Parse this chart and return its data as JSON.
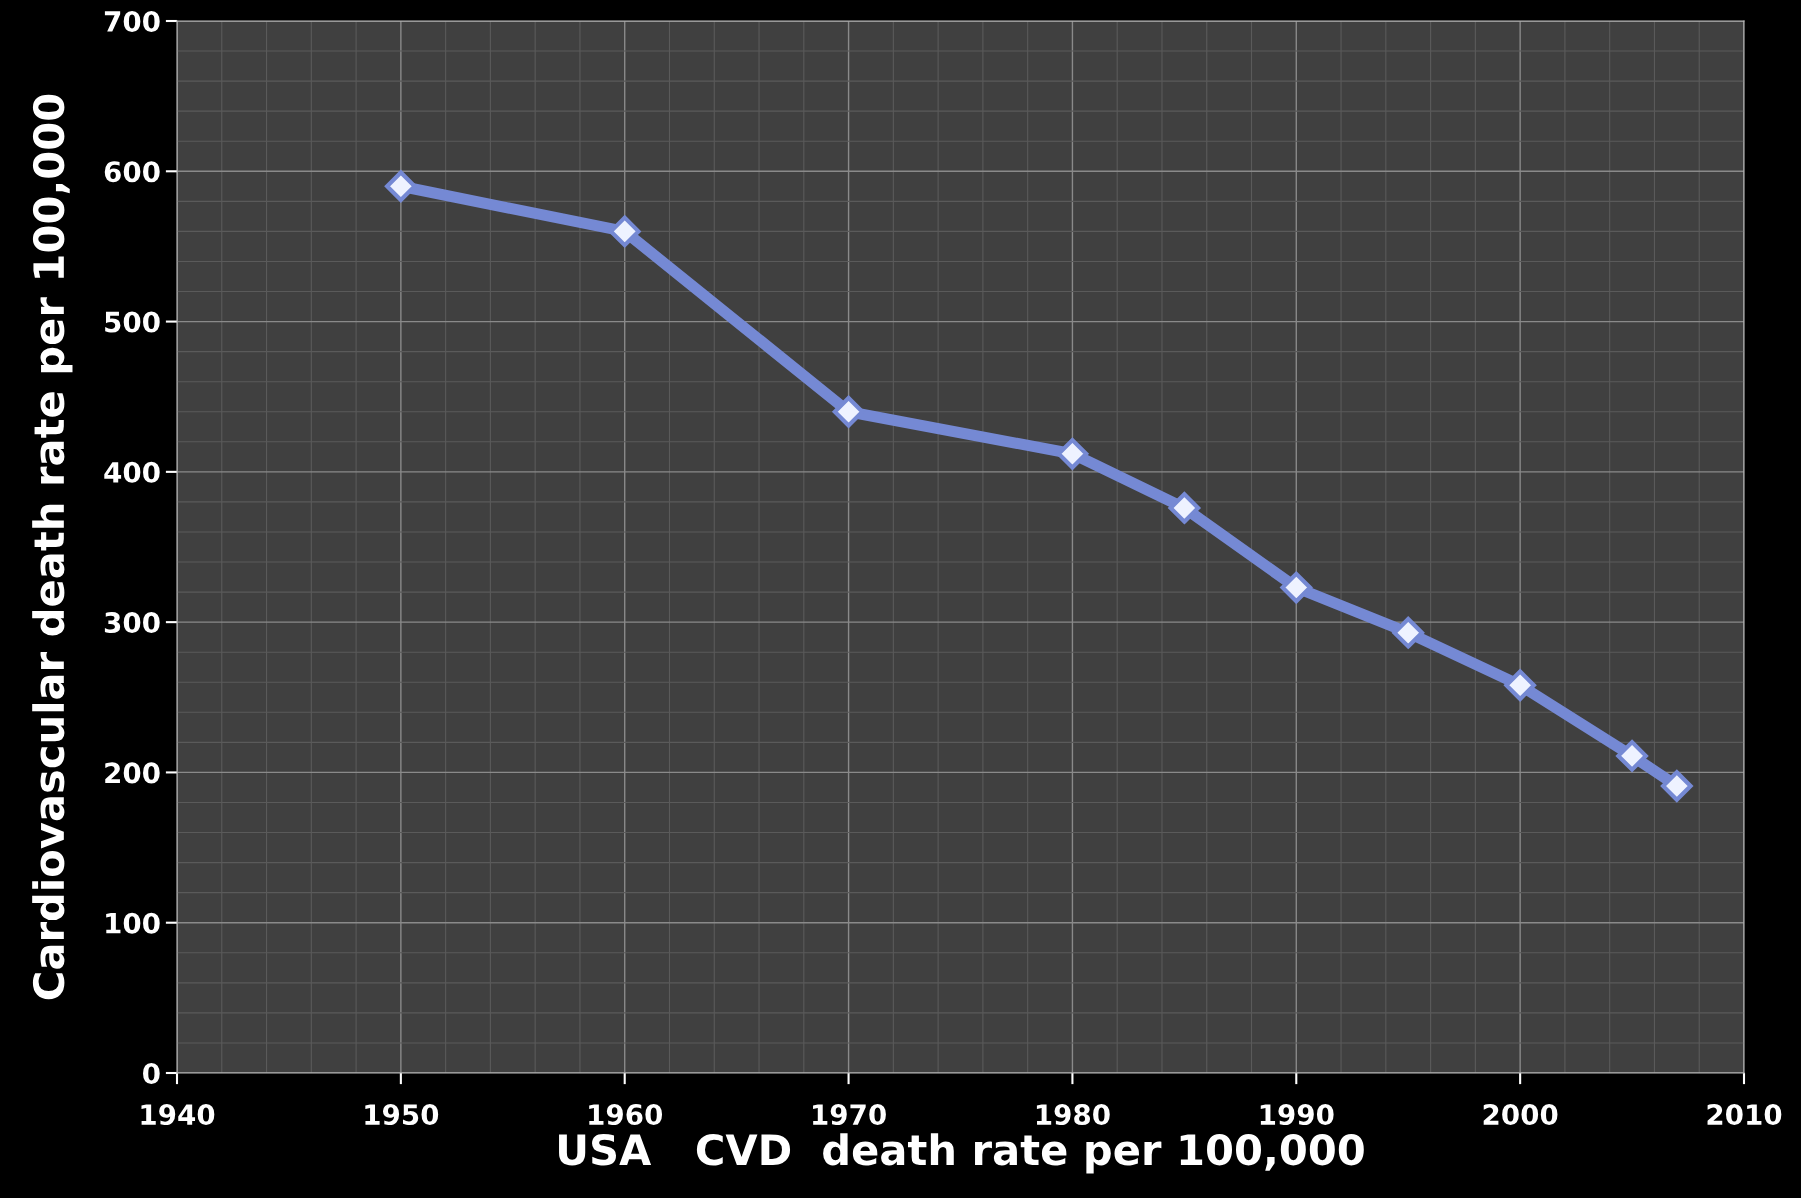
{
  "chart_data": {
    "type": "line",
    "xlabel": "USA   CVD  death rate per 100,000",
    "ylabel": "Cardiovascular death rate per 100,000",
    "series": [
      {
        "color": "#7589d4",
        "x": [
          1950,
          1960,
          1970,
          1980,
          1985,
          1990,
          1995,
          2000,
          2005,
          2007
        ],
        "values": [
          590,
          560,
          440,
          412,
          376,
          323,
          293,
          258,
          211,
          191
        ]
      }
    ],
    "xlim": [
      1940,
      2010
    ],
    "xticks": [
      1940,
      1950,
      1960,
      1970,
      1980,
      1990,
      2000,
      2010
    ],
    "ylim": [
      0,
      700
    ],
    "yticks": [
      0,
      100,
      200,
      300,
      400,
      500,
      600,
      700
    ],
    "grid": true,
    "marker": "diamond",
    "line_style": "solid",
    "legend": false
  }
}
